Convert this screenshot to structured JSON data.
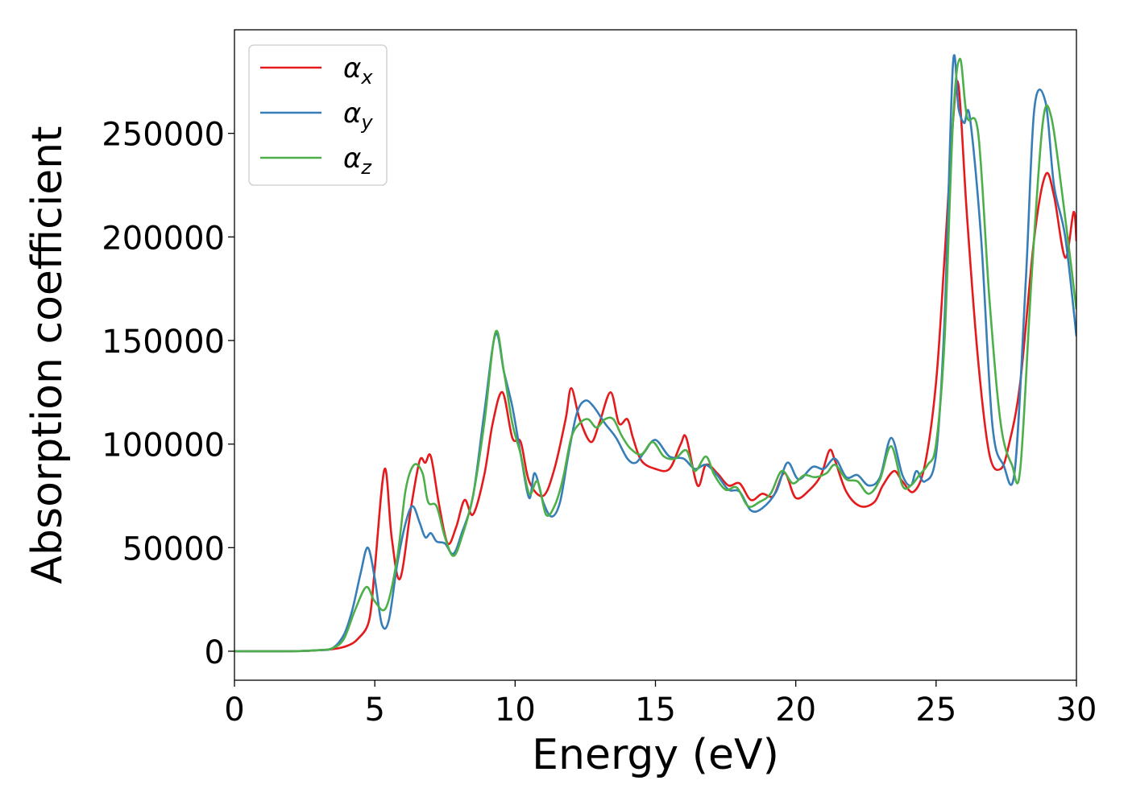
{
  "chart_data": {
    "type": "line",
    "title": "",
    "xlabel": "Energy (eV)",
    "ylabel": "Absorption coefficient",
    "xlim": [
      0,
      30
    ],
    "ylim": [
      -14000,
      300000
    ],
    "xticks": [
      0,
      5,
      10,
      15,
      20,
      25,
      30
    ],
    "yticks": [
      0,
      50000,
      100000,
      150000,
      200000,
      250000
    ],
    "xtick_labels": [
      "0",
      "5",
      "10",
      "15",
      "20",
      "25",
      "30"
    ],
    "ytick_labels": [
      "0",
      "50000",
      "100000",
      "150000",
      "200000",
      "250000"
    ],
    "grid": false,
    "legend_position": "top-left",
    "series": [
      {
        "name": "αx",
        "symbol": "α",
        "subscript": "x",
        "color": "#e41a1c",
        "x": [
          0,
          2,
          3,
          3.5,
          4,
          4.4,
          4.8,
          5.0,
          5.35,
          5.6,
          5.9,
          6.3,
          6.6,
          6.8,
          7.0,
          7.3,
          7.6,
          7.9,
          8.2,
          8.5,
          8.9,
          9.2,
          9.55,
          9.9,
          10.2,
          10.5,
          11.0,
          11.4,
          11.8,
          12.0,
          12.3,
          12.7,
          13.0,
          13.4,
          13.7,
          14.0,
          14.2,
          14.5,
          15.0,
          15.5,
          15.9,
          16.1,
          16.5,
          16.8,
          17.2,
          17.6,
          18.0,
          18.4,
          18.8,
          19.2,
          19.6,
          20.0,
          20.5,
          20.9,
          21.2,
          21.4,
          21.8,
          22.3,
          22.8,
          23.1,
          23.5,
          23.8,
          24.2,
          24.6,
          25.0,
          25.3,
          25.6,
          25.8,
          26.1,
          26.5,
          26.9,
          27.3,
          27.6,
          28.0,
          28.5,
          28.9,
          29.2,
          29.6,
          29.9,
          30.0
        ],
        "y": [
          0,
          0,
          500,
          1000,
          2500,
          6000,
          15000,
          40000,
          88000,
          55000,
          35000,
          70000,
          92000,
          91000,
          94000,
          70000,
          52000,
          60000,
          73000,
          66000,
          85000,
          110000,
          125000,
          103000,
          101000,
          82000,
          75000,
          88000,
          112000,
          127000,
          112000,
          101000,
          110000,
          125000,
          110000,
          112000,
          103000,
          92000,
          88000,
          88000,
          100000,
          103000,
          80000,
          90000,
          86000,
          80000,
          81000,
          73000,
          76000,
          75000,
          86000,
          74000,
          78000,
          85000,
          97000,
          92000,
          77000,
          70000,
          72000,
          80000,
          87000,
          82000,
          77000,
          90000,
          130000,
          190000,
          255000,
          273000,
          210000,
          140000,
          95000,
          88000,
          100000,
          130000,
          200000,
          230000,
          220000,
          190000,
          212000,
          198000
        ]
      },
      {
        "name": "αy",
        "symbol": "α",
        "subscript": "y",
        "color": "#377eb8",
        "x": [
          0,
          2,
          3,
          3.5,
          3.9,
          4.2,
          4.5,
          4.75,
          5.0,
          5.25,
          5.5,
          5.8,
          6.1,
          6.35,
          6.6,
          6.8,
          7.0,
          7.2,
          7.5,
          7.8,
          8.1,
          8.5,
          8.9,
          9.3,
          9.6,
          9.9,
          10.2,
          10.5,
          10.7,
          11.0,
          11.3,
          11.6,
          11.9,
          12.2,
          12.5,
          12.8,
          13.2,
          13.6,
          14.0,
          14.3,
          14.6,
          15.0,
          15.5,
          16.0,
          16.4,
          16.8,
          17.2,
          17.6,
          18.0,
          18.4,
          18.8,
          19.3,
          19.7,
          20.1,
          20.6,
          21.0,
          21.4,
          21.8,
          22.2,
          22.6,
          23.0,
          23.4,
          23.8,
          24.1,
          24.3,
          24.6,
          25.0,
          25.3,
          25.6,
          25.8,
          26.0,
          26.2,
          26.6,
          27.0,
          27.4,
          27.8,
          28.2,
          28.5,
          28.9,
          29.2,
          29.6,
          30.0
        ],
        "y": [
          0,
          0,
          500,
          1500,
          8000,
          20000,
          38000,
          50000,
          35000,
          13000,
          15000,
          42000,
          62000,
          70000,
          62000,
          55000,
          57000,
          53000,
          52000,
          47000,
          57000,
          75000,
          115000,
          153000,
          135000,
          118000,
          95000,
          74000,
          86000,
          72000,
          65000,
          72000,
          95000,
          115000,
          121000,
          118000,
          110000,
          103000,
          93000,
          91000,
          96000,
          102000,
          94000,
          93000,
          88000,
          90000,
          85000,
          78000,
          77000,
          68000,
          69000,
          77000,
          91000,
          83000,
          89000,
          88000,
          93000,
          84000,
          85000,
          80000,
          84000,
          103000,
          85000,
          80000,
          87000,
          82000,
          95000,
          160000,
          283000,
          262000,
          255000,
          258000,
          200000,
          110000,
          90000,
          87000,
          180000,
          262000,
          265000,
          225000,
          200000,
          152000
        ]
      },
      {
        "name": "αz",
        "symbol": "α",
        "subscript": "z",
        "color": "#4daf4a",
        "x": [
          0,
          2,
          3,
          3.5,
          3.9,
          4.3,
          4.7,
          5.0,
          5.4,
          5.8,
          6.1,
          6.4,
          6.7,
          6.9,
          7.2,
          7.5,
          7.8,
          8.1,
          8.5,
          8.9,
          9.3,
          9.6,
          9.9,
          10.2,
          10.5,
          10.8,
          11.1,
          11.4,
          11.7,
          12.0,
          12.3,
          12.6,
          12.9,
          13.2,
          13.5,
          13.8,
          14.1,
          14.5,
          14.9,
          15.3,
          15.7,
          16.1,
          16.4,
          16.8,
          17.1,
          17.5,
          17.9,
          18.3,
          18.7,
          19.1,
          19.5,
          19.9,
          20.3,
          20.7,
          21.1,
          21.4,
          21.8,
          22.2,
          22.6,
          23.0,
          23.4,
          23.8,
          24.1,
          24.4,
          24.7,
          25.0,
          25.3,
          25.6,
          25.85,
          26.1,
          26.5,
          26.9,
          27.3,
          27.7,
          28.0,
          28.4,
          28.8,
          29.1,
          29.5,
          30.0
        ],
        "y": [
          0,
          0,
          500,
          1500,
          6000,
          20000,
          31000,
          24000,
          21000,
          45000,
          78000,
          90000,
          86000,
          72000,
          70000,
          55000,
          46000,
          55000,
          75000,
          110000,
          154000,
          135000,
          110000,
          95000,
          76000,
          82000,
          66000,
          70000,
          83000,
          103000,
          110000,
          112000,
          108000,
          112000,
          112000,
          104000,
          98000,
          95000,
          101000,
          94000,
          93000,
          97000,
          87000,
          94000,
          85000,
          78000,
          79000,
          70000,
          72000,
          76000,
          87000,
          81000,
          85000,
          84000,
          86000,
          90000,
          83000,
          82000,
          76000,
          83000,
          99000,
          80000,
          80000,
          85000,
          90000,
          100000,
          150000,
          255000,
          286000,
          258000,
          250000,
          170000,
          110000,
          90000,
          88000,
          180000,
          255000,
          258000,
          220000,
          165000
        ]
      }
    ]
  }
}
